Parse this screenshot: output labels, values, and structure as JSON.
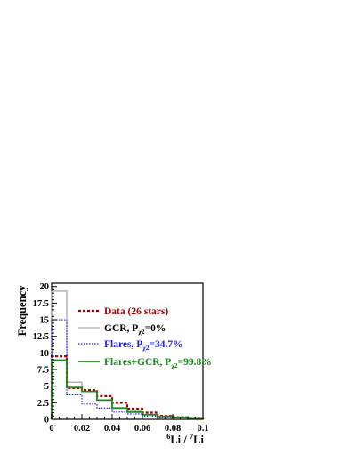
{
  "chart_data": {
    "type": "histogram",
    "xlabel": {
      "sup1": "6",
      "base1": "Li / ",
      "sup2": "7",
      "base2": "Li"
    },
    "ylabel": "Frequency",
    "xlim": [
      0,
      0.1
    ],
    "ylim": [
      0,
      20.5
    ],
    "x_ticks": [
      "0",
      "0.02",
      "0.04",
      "0.06",
      "0.08",
      "0.1"
    ],
    "y_ticks": [
      "0",
      "2.5",
      "5",
      "7.5",
      "10",
      "12.5",
      "15",
      "17.5",
      "20"
    ],
    "bin_edges": [
      0,
      0.01,
      0.02,
      0.03,
      0.04,
      0.05,
      0.06,
      0.07,
      0.08,
      0.09,
      0.1
    ],
    "series": [
      {
        "key": "gcr",
        "values": [
          19.3,
          5.6,
          4.2,
          2.9,
          1.7,
          1.2,
          0.7,
          0.45,
          0.3,
          0.2
        ],
        "color": "#9a9a9a",
        "dash": "",
        "width": 1.1,
        "legend": {
          "main": "GCR, P",
          "sub": "χ2",
          "tail": "=0%"
        },
        "legend_color": "#000000"
      },
      {
        "key": "data",
        "values": [
          9.5,
          4.7,
          4.4,
          3.5,
          2.5,
          1.6,
          1.0,
          0.5,
          0.3,
          0.2
        ],
        "color": "#a00000",
        "dash": "3,2",
        "width": 2.2,
        "legend": {
          "main": "Data (26 stars)",
          "sub": "",
          "tail": ""
        },
        "legend_color": "#a00000"
      },
      {
        "key": "flares",
        "values": [
          15.0,
          3.7,
          2.3,
          1.7,
          1.1,
          0.8,
          0.5,
          0.35,
          0.25,
          0.15
        ],
        "color": "#1a1aff",
        "dash": "1.5,1.5",
        "width": 1.2,
        "legend": {
          "main": "Flares, P",
          "sub": "χ2",
          "tail": "=34.7%"
        },
        "legend_color": "#1a1aff"
      },
      {
        "key": "flares_gcr",
        "values": [
          8.9,
          4.8,
          4.2,
          2.9,
          1.7,
          1.1,
          0.7,
          0.45,
          0.3,
          0.2
        ],
        "color": "#1a8a1a",
        "dash": "",
        "width": 1.8,
        "legend": {
          "main": "Flares+GCR, P",
          "sub": "χ2",
          "tail": "=99.8%"
        },
        "legend_color": "#1a8a1a"
      }
    ],
    "legend_order": [
      "data",
      "gcr",
      "flares",
      "flares_gcr"
    ],
    "legend_placement": "inside-right"
  }
}
